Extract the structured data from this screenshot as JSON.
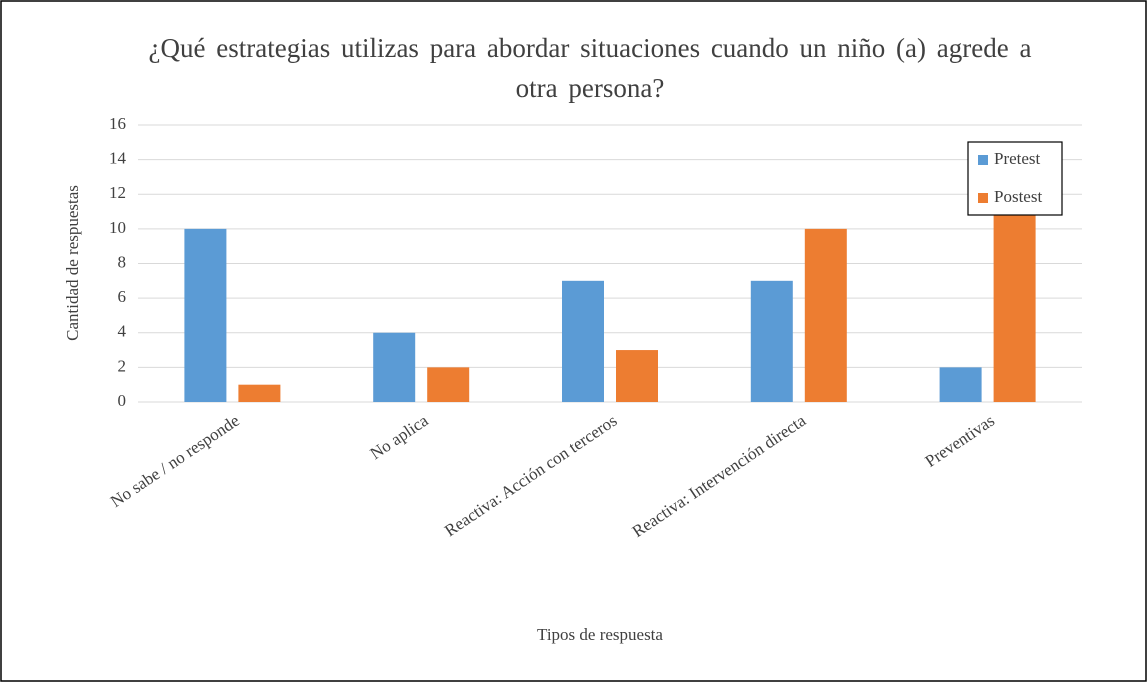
{
  "chart_data": {
    "type": "bar",
    "title": "¿Qué estrategias utilizas para abordar situaciones cuando un niño (a) agrede a otra persona?",
    "x_label": "Tipos de respuesta",
    "y_label": "Cantidad de respuestas",
    "categories": [
      "No sabe / no responde",
      "No aplica",
      "Reactiva: Acción con terceros",
      "Reactiva: Intervención directa",
      "Preventivas"
    ],
    "series": [
      {
        "name": "Pretest",
        "color": "#5b9bd5",
        "values": [
          10,
          4,
          7,
          7,
          2
        ]
      },
      {
        "name": "Postest",
        "color": "#ed7d31",
        "values": [
          1,
          2,
          3,
          10,
          12
        ]
      }
    ],
    "ylim": [
      0,
      16
    ],
    "yticks": [
      0,
      2,
      4,
      6,
      8,
      10,
      12,
      14,
      16
    ],
    "grid": true,
    "legend": "top-right"
  }
}
